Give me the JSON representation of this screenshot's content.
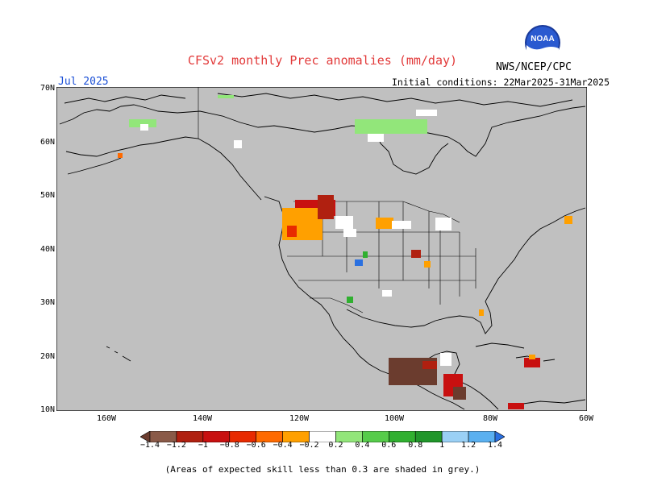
{
  "title": "CFSv2 monthly Prec anomalies (mm/day)",
  "agency": "NWS/NCEP/CPC",
  "season": "Jul 2025",
  "initial_conditions": "Initial conditions: 22Mar2025-31Mar2025",
  "logo_text": "NOAA",
  "lat_labels": [
    "70N",
    "60N",
    "50N",
    "40N",
    "30N",
    "20N",
    "10N"
  ],
  "lon_labels": [
    "160W",
    "140W",
    "120W",
    "100W",
    "80W",
    "60W"
  ],
  "colorbar_labels": [
    "−1.4",
    "−1.2",
    "−1",
    "−0.8",
    "−0.6",
    "−0.4",
    "−0.2",
    "0.2",
    "0.4",
    "0.6",
    "0.8",
    "1",
    "1.2",
    "1.4"
  ],
  "colorbar_colors": [
    "#6b3c2e",
    "#8a5a48",
    "#b02010",
    "#c81010",
    "#e82a00",
    "#ff6a00",
    "#ffa000",
    "#ffffff",
    "#92e67a",
    "#56cc4a",
    "#30b030",
    "#20962a",
    "#9ad0f5",
    "#5ab0f0",
    "#2a70e0"
  ],
  "note": "(Areas of expected skill less than 0.3 are shaded in grey.)",
  "colors": {
    "ocean_land_grey": "#c0c0c0",
    "title_red": "#e23a3a",
    "season_blue": "#1a4fd6"
  }
}
